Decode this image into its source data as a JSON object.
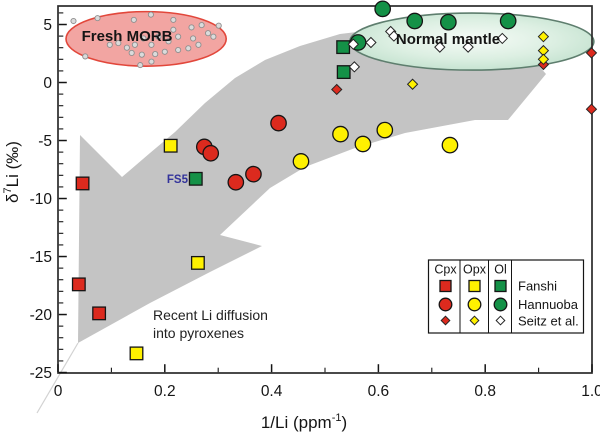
{
  "figure": {
    "axes": {
      "x_title": {
        "base": "1/Li (ppm",
        "sup": "-1",
        "close": ")"
      },
      "y_title": {
        "base": "δ",
        "sup": "7",
        "close": "Li (‰)"
      }
    },
    "legend": {
      "columns": [
        "Cpx",
        "Opx",
        "Ol"
      ],
      "rows": [
        "Fanshi",
        "Hannuoba",
        "Seitz et al."
      ]
    },
    "colors": {
      "cpx_red": "#DC2A1E",
      "opx_yellow": "#FFF100",
      "ol_green": "#149147",
      "arrow_gray": "#C4C4C4",
      "morb_fill": "#F2A5A2",
      "morb_stroke": "#E2473B",
      "mantle_edge": "#BEDFCB",
      "mantle_stroke": "#5E7E6E",
      "fs5_blue": "#33339B"
    }
  },
  "chart_data": {
    "type": "scatter",
    "title": "",
    "xlabel": "1/Li (ppm⁻¹)",
    "ylabel": "δ⁷Li (‰)",
    "x_range": [
      0,
      1.0
    ],
    "y_range": [
      -25.04,
      6.595
    ],
    "x_ticks": [
      0,
      0.2,
      0.4,
      0.6,
      0.8,
      1.0
    ],
    "x_tick_labels": [
      "0",
      "0.2",
      "0.4",
      "0.6",
      "0.8",
      "1.0"
    ],
    "x_minor_ticks": [
      0.1,
      0.3,
      0.5,
      0.7,
      0.9
    ],
    "y_ticks": [
      5,
      0,
      -5,
      -10,
      -15,
      -20,
      -25
    ],
    "y_tick_labels": [
      "5",
      "0",
      "-5",
      "-10",
      "-15",
      "-20",
      "-25"
    ],
    "y_minor_step": 1,
    "grid": false,
    "legend_position": "lower right",
    "series": [
      {
        "name": "Fanshi Cpx",
        "marker": "square",
        "color": "#DC2A1E",
        "points": [
          [
            0.046,
            -8.7
          ],
          [
            0.039,
            -17.4
          ],
          [
            0.077,
            -19.9
          ]
        ]
      },
      {
        "name": "Fanshi Opx",
        "marker": "square",
        "color": "#FFF100",
        "points": [
          [
            0.211,
            -5.45
          ],
          [
            0.262,
            -15.55
          ],
          [
            0.147,
            -23.35
          ]
        ]
      },
      {
        "name": "Fanshi Ol",
        "marker": "square",
        "color": "#149147",
        "points": [
          [
            0.534,
            3.05
          ],
          [
            0.535,
            0.9
          ],
          [
            0.258,
            -8.3
          ]
        ]
      },
      {
        "name": "Hannuoba Cpx",
        "marker": "circle",
        "color": "#DC2A1E",
        "points": [
          [
            0.274,
            -5.55
          ],
          [
            0.286,
            -6.1
          ],
          [
            0.333,
            -8.6
          ],
          [
            0.366,
            -7.9
          ],
          [
            0.413,
            -3.5
          ]
        ]
      },
      {
        "name": "Hannuoba Opx",
        "marker": "circle",
        "color": "#FFF100",
        "points": [
          [
            0.455,
            -6.8
          ],
          [
            0.529,
            -4.45
          ],
          [
            0.571,
            -5.3
          ],
          [
            0.612,
            -4.1
          ],
          [
            0.734,
            -5.4
          ]
        ]
      },
      {
        "name": "Hannuoba Ol",
        "marker": "circle",
        "color": "#149147",
        "points": [
          [
            0.608,
            6.35
          ],
          [
            0.668,
            5.3
          ],
          [
            0.731,
            5.2
          ],
          [
            0.843,
            5.3
          ],
          [
            0.562,
            3.45
          ]
        ]
      },
      {
        "name": "Seitz Cpx",
        "marker": "diamond",
        "color": "#DC2A1E",
        "points": [
          [
            0.522,
            -0.6
          ],
          [
            0.909,
            1.55
          ],
          [
            0.999,
            2.55
          ],
          [
            0.999,
            -2.3
          ]
        ]
      },
      {
        "name": "Seitz Opx",
        "marker": "diamond",
        "color": "#FFF100",
        "points": [
          [
            0.909,
            3.95
          ],
          [
            0.909,
            2.75
          ],
          [
            0.909,
            2.0
          ],
          [
            0.664,
            -0.15
          ]
        ]
      },
      {
        "name": "Seitz Ol",
        "marker": "diamond",
        "color": "#FFFFFF",
        "points": [
          [
            0.623,
            4.4
          ],
          [
            0.629,
            4.0
          ],
          [
            0.586,
            3.45
          ],
          [
            0.553,
            3.3
          ],
          [
            0.715,
            3.05
          ],
          [
            0.768,
            3.05
          ],
          [
            0.832,
            3.8
          ],
          [
            0.555,
            1.35
          ]
        ]
      }
    ],
    "fields": [
      {
        "label": "Fresh MORB",
        "cx": 0.165,
        "cy": 3.76,
        "rx": 0.15,
        "ry": 2.35,
        "fill": "#F2A5A2",
        "stroke": "#E2473B",
        "dots": [
          [
            0.029,
            5.3
          ],
          [
            0.074,
            5.55
          ],
          [
            0.142,
            5.4
          ],
          [
            0.174,
            5.85
          ],
          [
            0.216,
            5.4
          ],
          [
            0.216,
            4.55
          ],
          [
            0.25,
            4.75
          ],
          [
            0.269,
            4.95
          ],
          [
            0.301,
            4.9
          ],
          [
            0.281,
            4.25
          ],
          [
            0.253,
            3.8
          ],
          [
            0.225,
            3.95
          ],
          [
            0.207,
            3.55
          ],
          [
            0.188,
            3.95
          ],
          [
            0.175,
            3.25
          ],
          [
            0.16,
            3.8
          ],
          [
            0.144,
            3.25
          ],
          [
            0.129,
            3.0
          ],
          [
            0.113,
            3.4
          ],
          [
            0.097,
            3.25
          ],
          [
            0.138,
            2.55
          ],
          [
            0.157,
            2.4
          ],
          [
            0.182,
            2.45
          ],
          [
            0.2,
            2.65
          ],
          [
            0.225,
            2.8
          ],
          [
            0.244,
            2.95
          ],
          [
            0.051,
            2.25
          ],
          [
            0.154,
            1.5
          ],
          [
            0.175,
            1.8
          ],
          [
            0.263,
            3.25
          ],
          [
            0.291,
            3.95
          ]
        ]
      },
      {
        "label": "Normal mantle",
        "cx": 0.775,
        "cy": 3.53,
        "rx": 0.2285,
        "ry": 2.46,
        "fill": "gradient",
        "stroke": "#5E7E6E",
        "dots": []
      }
    ],
    "annotations": {
      "fs5": "FS5",
      "diffusion_line1": "Recent Li diffusion",
      "diffusion_line2": "into pyroxenes",
      "fresh_morb": "Fresh MORB",
      "normal_mantle": "Normal mantle"
    }
  }
}
